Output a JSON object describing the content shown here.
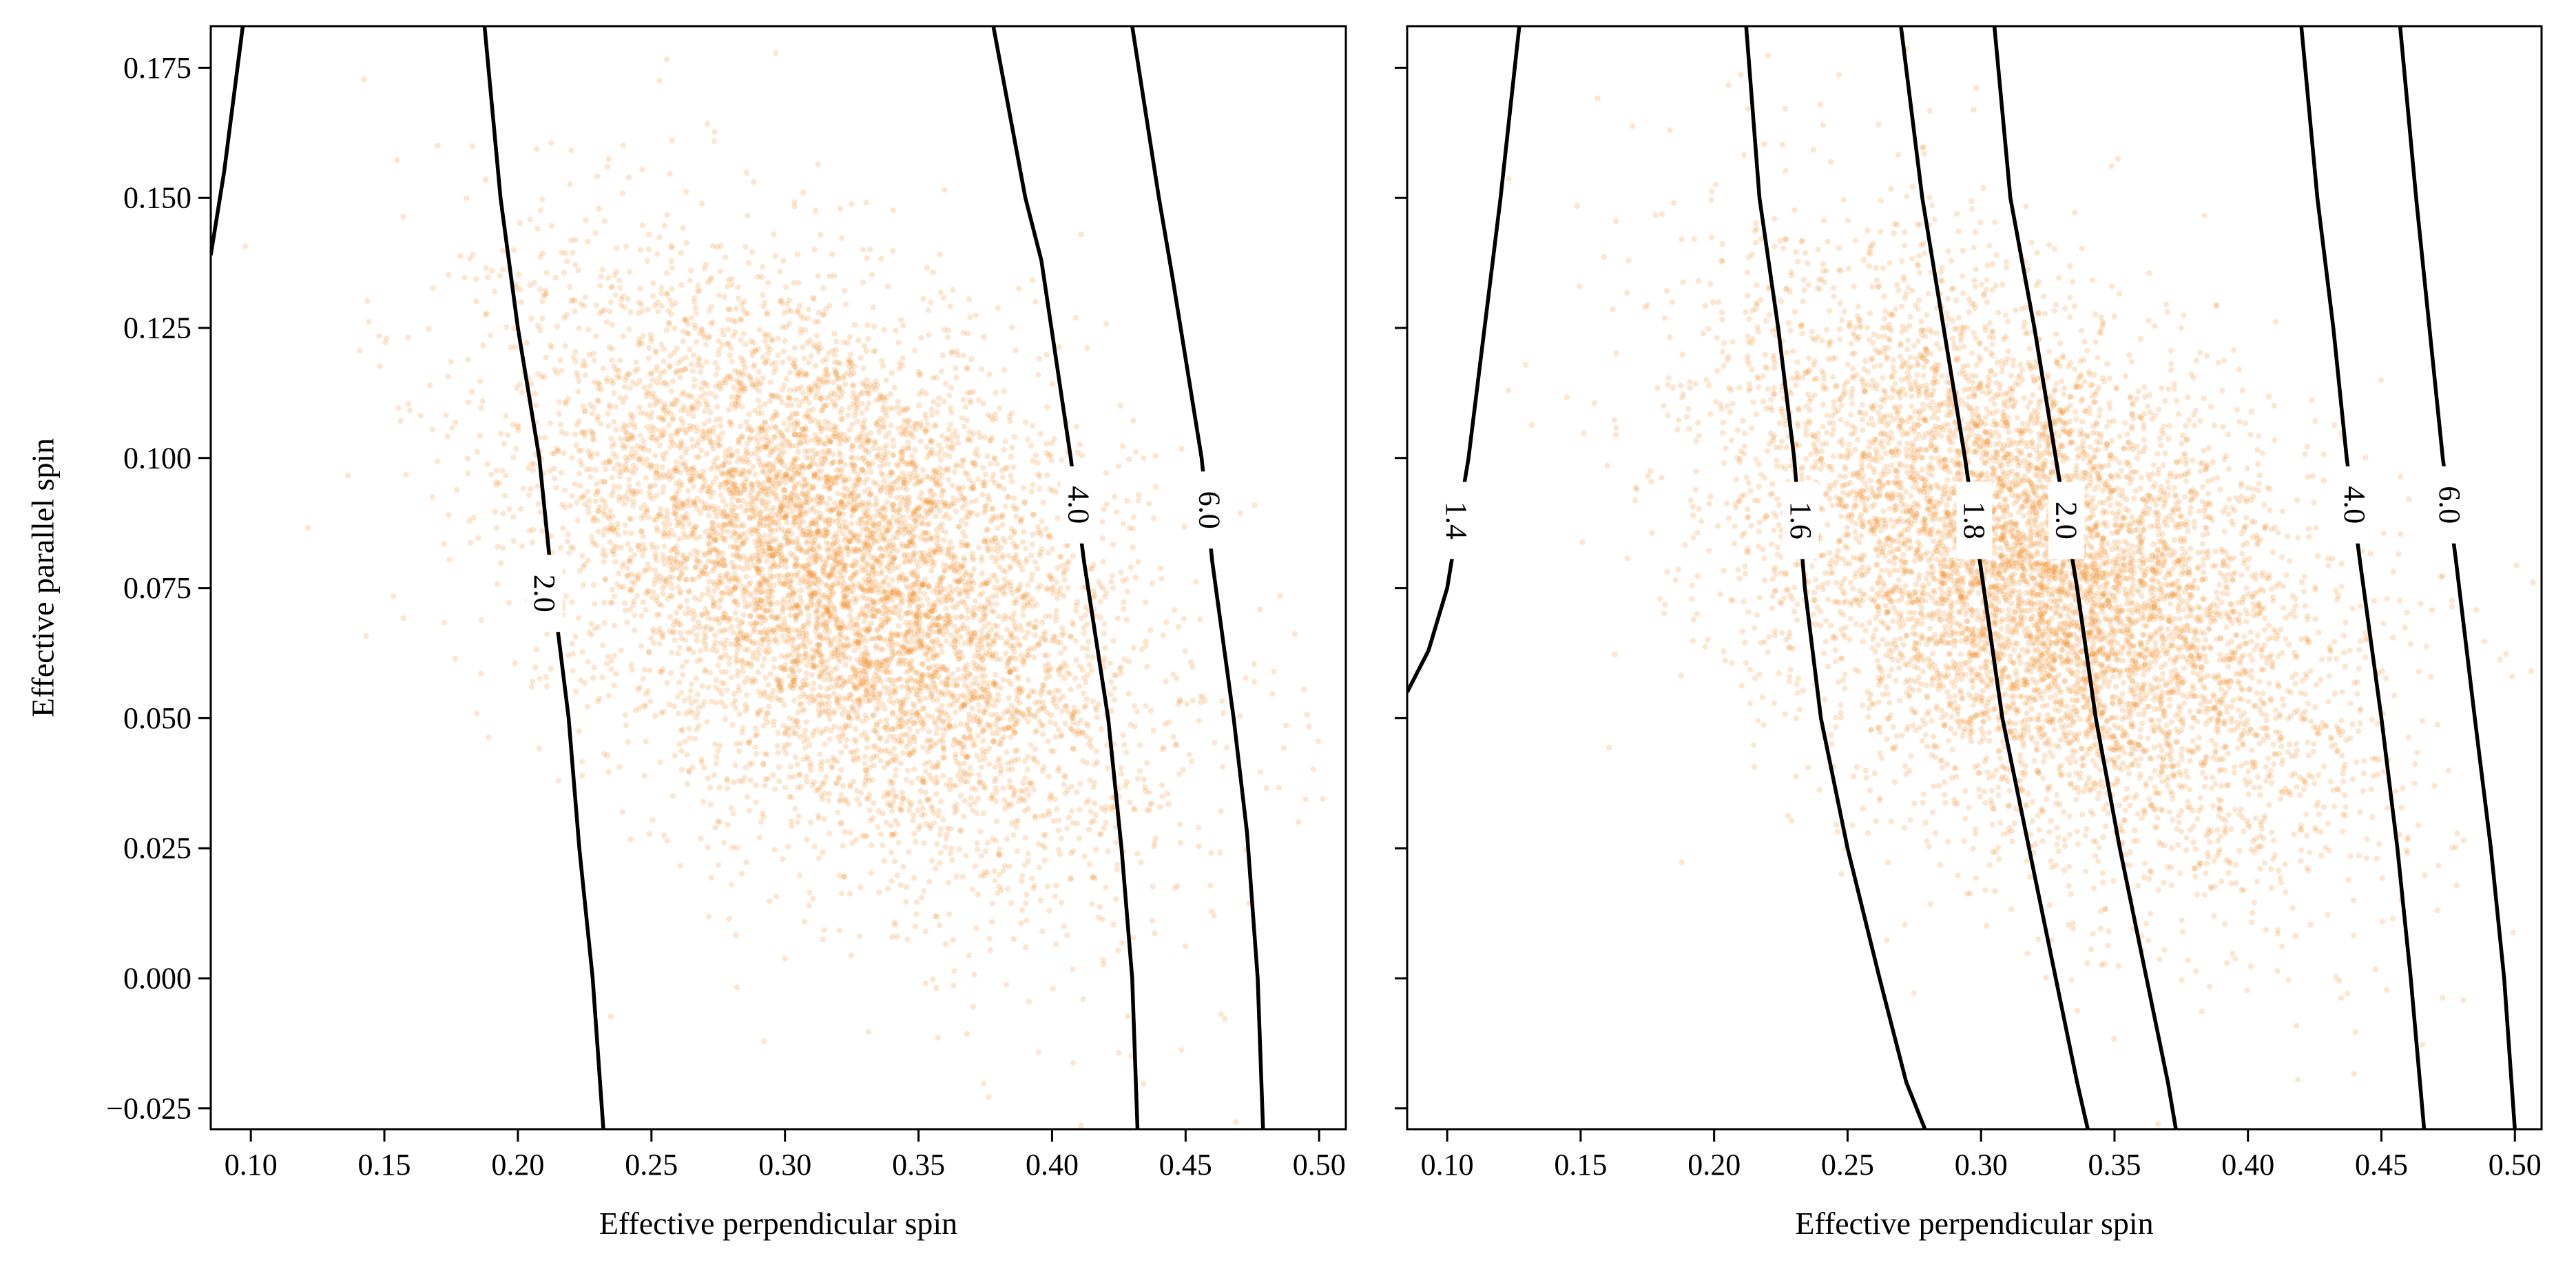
{
  "chart_data": [
    {
      "type": "scatter",
      "xlabel": "Effective perpendicular spin",
      "ylabel": "Effective parallel spin",
      "xlim": [
        0.085,
        0.51
      ],
      "ylim": [
        -0.029,
        0.183
      ],
      "xticks": [
        "0.10",
        "0.15",
        "0.20",
        "0.25",
        "0.30",
        "0.35",
        "0.40",
        "0.45",
        "0.50"
      ],
      "yticks": [
        "−0.025",
        "0.000",
        "0.025",
        "0.050",
        "0.075",
        "0.100",
        "0.125",
        "0.150",
        "0.175"
      ],
      "point_color": "#f28e2b",
      "scatter_cloud": {
        "n_points": 7000,
        "center": [
          0.32,
          0.078
        ],
        "std": [
          0.055,
          0.028
        ],
        "correlation": -0.45
      },
      "contours": [
        {
          "label": "2.0",
          "points": [
            [
              0.1875,
              0.183
            ],
            [
              0.1935,
              0.15
            ],
            [
              0.2,
              0.125
            ],
            [
              0.208,
              0.1
            ],
            [
              0.213,
              0.075
            ],
            [
              0.219,
              0.05
            ],
            [
              0.223,
              0.025
            ],
            [
              0.228,
              0.0
            ],
            [
              0.232,
              -0.029
            ]
          ]
        },
        {
          "label": "4.0",
          "points": [
            [
              0.378,
              0.183
            ],
            [
              0.39,
              0.15
            ],
            [
              0.396,
              0.138
            ],
            [
              0.407,
              0.1
            ],
            [
              0.412,
              0.08
            ],
            [
              0.421,
              0.05
            ],
            [
              0.426,
              0.025
            ],
            [
              0.43,
              0.0
            ],
            [
              0.432,
              -0.029
            ]
          ]
        },
        {
          "label": "6.0",
          "points": [
            [
              0.43,
              0.183
            ],
            [
              0.44,
              0.15
            ],
            [
              0.445,
              0.135
            ],
            [
              0.456,
              0.1
            ],
            [
              0.46,
              0.08
            ],
            [
              0.468,
              0.05
            ],
            [
              0.473,
              0.028
            ],
            [
              0.477,
              0.0
            ],
            [
              0.479,
              -0.029
            ]
          ]
        },
        {
          "label": "",
          "points": [
            [
              0.097,
              0.183
            ],
            [
              0.09,
              0.155
            ],
            [
              0.085,
              0.139
            ]
          ]
        }
      ],
      "contour_labels": [
        {
          "text": "2.0",
          "x": 0.21,
          "y": 0.074
        },
        {
          "text": "4.0",
          "x": 0.41,
          "y": 0.091
        },
        {
          "text": "6.0",
          "x": 0.459,
          "y": 0.09
        }
      ]
    },
    {
      "type": "scatter",
      "xlabel": "Effective perpendicular spin",
      "ylabel": "",
      "xlim": [
        0.085,
        0.51
      ],
      "ylim": [
        -0.029,
        0.183
      ],
      "xticks": [
        "0.10",
        "0.15",
        "0.20",
        "0.25",
        "0.30",
        "0.35",
        "0.40",
        "0.45",
        "0.50"
      ],
      "yticks": [],
      "point_color": "#f28e2b",
      "scatter_cloud": {
        "n_points": 7000,
        "center": [
          0.32,
          0.078
        ],
        "std": [
          0.055,
          0.028
        ],
        "correlation": -0.45
      },
      "contours": [
        {
          "label": "1.4",
          "points": [
            [
              0.127,
              0.183
            ],
            [
              0.12,
              0.15
            ],
            [
              0.108,
              0.1
            ],
            [
              0.1,
              0.075
            ],
            [
              0.093,
              0.063
            ],
            [
              0.085,
              0.055
            ]
          ]
        },
        {
          "label": "1.6",
          "points": [
            [
              0.212,
              0.183
            ],
            [
              0.217,
              0.15
            ],
            [
              0.224,
              0.125
            ],
            [
              0.23,
              0.1
            ],
            [
              0.234,
              0.075
            ],
            [
              0.24,
              0.05
            ],
            [
              0.25,
              0.025
            ],
            [
              0.262,
              0.0
            ],
            [
              0.272,
              -0.02
            ],
            [
              0.279,
              -0.029
            ]
          ]
        },
        {
          "label": "1.8",
          "points": [
            [
              0.27,
              0.183
            ],
            [
              0.278,
              0.15
            ],
            [
              0.286,
              0.125
            ],
            [
              0.294,
              0.1
            ],
            [
              0.301,
              0.075
            ],
            [
              0.308,
              0.05
            ],
            [
              0.318,
              0.025
            ],
            [
              0.328,
              0.0
            ],
            [
              0.336,
              -0.02
            ],
            [
              0.34,
              -0.029
            ]
          ]
        },
        {
          "label": "2.0",
          "points": [
            [
              0.305,
              0.183
            ],
            [
              0.311,
              0.15
            ],
            [
              0.32,
              0.125
            ],
            [
              0.328,
              0.1
            ],
            [
              0.336,
              0.075
            ],
            [
              0.343,
              0.05
            ],
            [
              0.352,
              0.025
            ],
            [
              0.362,
              0.0
            ],
            [
              0.37,
              -0.02
            ],
            [
              0.373,
              -0.029
            ]
          ]
        },
        {
          "label": "4.0",
          "points": [
            [
              0.42,
              0.183
            ],
            [
              0.426,
              0.15
            ],
            [
              0.432,
              0.125
            ],
            [
              0.437,
              0.1
            ],
            [
              0.442,
              0.08
            ],
            [
              0.45,
              0.05
            ],
            [
              0.456,
              0.025
            ],
            [
              0.461,
              0.0
            ],
            [
              0.466,
              -0.029
            ]
          ]
        },
        {
          "label": "6.0",
          "points": [
            [
              0.457,
              0.183
            ],
            [
              0.463,
              0.15
            ],
            [
              0.468,
              0.125
            ],
            [
              0.473,
              0.1
            ],
            [
              0.478,
              0.08
            ],
            [
              0.485,
              0.05
            ],
            [
              0.491,
              0.025
            ],
            [
              0.496,
              0.0
            ],
            [
              0.5,
              -0.029
            ]
          ]
        }
      ],
      "contour_labels": [
        {
          "text": "1.4",
          "x": 0.1035,
          "y": 0.088
        },
        {
          "text": "1.6",
          "x": 0.2325,
          "y": 0.088
        },
        {
          "text": "1.8",
          "x": 0.2975,
          "y": 0.088
        },
        {
          "text": "2.0",
          "x": 0.332,
          "y": 0.088
        },
        {
          "text": "4.0",
          "x": 0.44,
          "y": 0.091
        },
        {
          "text": "6.0",
          "x": 0.4755,
          "y": 0.091
        }
      ]
    }
  ]
}
